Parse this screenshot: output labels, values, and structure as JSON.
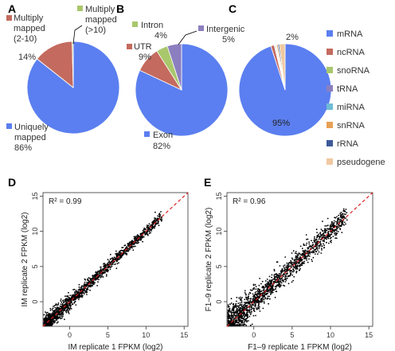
{
  "panels": {
    "a": "A",
    "b": "B",
    "c": "C",
    "d": "D",
    "e": "E"
  },
  "legend": {
    "items": [
      {
        "label": "mRNA",
        "color": "#5b7ff0"
      },
      {
        "label": "ncRNA",
        "color": "#c46a5e"
      },
      {
        "label": "snoRNA",
        "color": "#a9c76c"
      },
      {
        "label": "tRNA",
        "color": "#8c7fbf"
      },
      {
        "label": "miRNA",
        "color": "#6fbcd6"
      },
      {
        "label": "snRNA",
        "color": "#e8a155"
      },
      {
        "label": "rRNA",
        "color": "#3d5a99"
      },
      {
        "label": "pseudogene",
        "color": "#f0c9a0"
      }
    ]
  },
  "chart_data": [
    {
      "type": "pie",
      "panel": "A",
      "slices": [
        {
          "label": "Uniquely mapped",
          "value": 86,
          "pct_label": "86%",
          "color": "#5b7ff0"
        },
        {
          "label": "Multiply mapped (2-10)",
          "value": 14,
          "pct_label": "14%",
          "color": "#c46a5e"
        },
        {
          "label": "Multiply mapped (>10)",
          "value": 0.4,
          "pct_label": "",
          "color": "#a9c76c"
        }
      ],
      "text": {
        "unique_l1": "Uniquely",
        "unique_l2": "mapped",
        "unique_pct": "86%",
        "mm_l1": "Multiply",
        "mm_l2": "mapped",
        "mm_l3": "(2-10)",
        "mm_pct": "14%",
        "mm10_l1": "Multiply",
        "mm10_l2": "mapped",
        "mm10_l3": "(>10)"
      }
    },
    {
      "type": "pie",
      "panel": "B",
      "slices": [
        {
          "label": "Exon",
          "value": 82,
          "pct_label": "82%",
          "color": "#5b7ff0"
        },
        {
          "label": "UTR",
          "value": 9,
          "pct_label": "9%",
          "color": "#c46a5e"
        },
        {
          "label": "Intron",
          "value": 4,
          "pct_label": "4%",
          "color": "#a9c76c"
        },
        {
          "label": "Intergenic",
          "value": 5,
          "pct_label": "5%",
          "color": "#8c7fbf"
        }
      ],
      "text": {
        "exon": "Exon",
        "exon_pct": "82%",
        "utr": "UTR",
        "utr_pct": "9%",
        "intron": "Intron",
        "intron_pct": "4%",
        "intergenic": "Intergenic",
        "intergenic_pct": "5%"
      }
    },
    {
      "type": "pie",
      "panel": "C",
      "slices": [
        {
          "label": "mRNA",
          "value": 95,
          "color": "#5b7ff0"
        },
        {
          "label": "ncRNA",
          "value": 1.2,
          "color": "#c46a5e"
        },
        {
          "label": "snoRNA",
          "value": 0.3,
          "color": "#a9c76c"
        },
        {
          "label": "tRNA",
          "value": 0.3,
          "color": "#8c7fbf"
        },
        {
          "label": "miRNA",
          "value": 0.2,
          "color": "#6fbcd6"
        },
        {
          "label": "snRNA",
          "value": 0.5,
          "color": "#e8a155"
        },
        {
          "label": "rRNA",
          "value": 0.5,
          "color": "#3d5a99"
        },
        {
          "label": "pseudogene",
          "value": 2,
          "color": "#f0c9a0"
        }
      ],
      "text": {
        "main_pct": "95%",
        "small_pct": "2%"
      }
    },
    {
      "type": "scatter",
      "panel": "D",
      "xlabel": "IM replicate 1 FPKM (log2)",
      "ylabel": "IM replicate 2 FPKM (log2)",
      "annotation": "R² = 0.99",
      "xlim": [
        -3.5,
        15.5
      ],
      "ylim": [
        -3.5,
        15.5
      ],
      "ticks": [
        0,
        5,
        10,
        15
      ],
      "tick_labels": [
        "0",
        "5",
        "10",
        "15"
      ],
      "reference_line": {
        "slope": 1,
        "intercept": 0,
        "color": "#dd2222",
        "style": "dashed"
      },
      "points": {
        "n": 1600,
        "x_range": [
          -3.2,
          12
        ],
        "spread": 0.35,
        "seed": 7
      }
    },
    {
      "type": "scatter",
      "panel": "E",
      "xlabel": "F1–9 replicate 1 FPKM (log2)",
      "ylabel": "F1–9 replicate 2 FPKM (log2)",
      "annotation": "R² = 0.96",
      "xlim": [
        -3.5,
        15.5
      ],
      "ylim": [
        -3.5,
        15.5
      ],
      "ticks": [
        0,
        5,
        10,
        15
      ],
      "tick_labels": [
        "0",
        "5",
        "10",
        "15"
      ],
      "reference_line": {
        "slope": 1,
        "intercept": 0,
        "color": "#dd2222",
        "style": "dashed"
      },
      "points": {
        "n": 1600,
        "x_range": [
          -3.2,
          12
        ],
        "spread": 0.7,
        "seed": 13
      }
    }
  ]
}
